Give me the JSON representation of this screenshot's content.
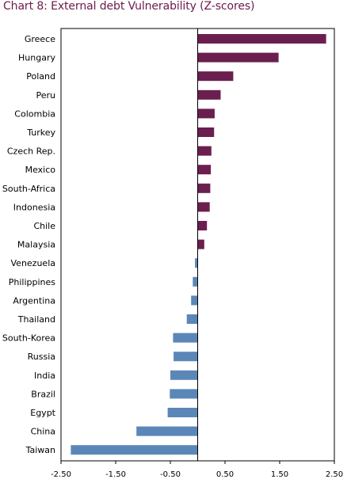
{
  "chart_data": {
    "type": "bar",
    "orientation": "horizontal",
    "title": "Chart 8: External debt Vulnerability  (Z-scores)",
    "xlabel": "",
    "ylabel": "",
    "xlim": [
      -2.5,
      2.5
    ],
    "xticks": [
      "-2.50",
      "-1.50",
      "-0.50",
      "0.50",
      "1.50",
      "2.50"
    ],
    "grid": false,
    "legend": "none",
    "colors": {
      "positive": "#6b1f4f",
      "negative": "#5b87b8"
    },
    "categories": [
      "Greece",
      "Hungary",
      "Poland",
      "Peru",
      "Colombia",
      "Turkey",
      "Czech Rep.",
      "Mexico",
      "South-Africa",
      "Indonesia",
      "Chile",
      "Malaysia",
      "Venezuela",
      "Philippines",
      "Argentina",
      "Thailand",
      "South-Korea",
      "Russia",
      "India",
      "Brazil",
      "Egypt",
      "China",
      "Taiwan"
    ],
    "values": [
      2.35,
      1.48,
      0.65,
      0.42,
      0.31,
      0.3,
      0.25,
      0.24,
      0.23,
      0.22,
      0.17,
      0.12,
      -0.05,
      -0.09,
      -0.12,
      -0.2,
      -0.45,
      -0.44,
      -0.5,
      -0.51,
      -0.55,
      -1.12,
      -2.32
    ]
  }
}
